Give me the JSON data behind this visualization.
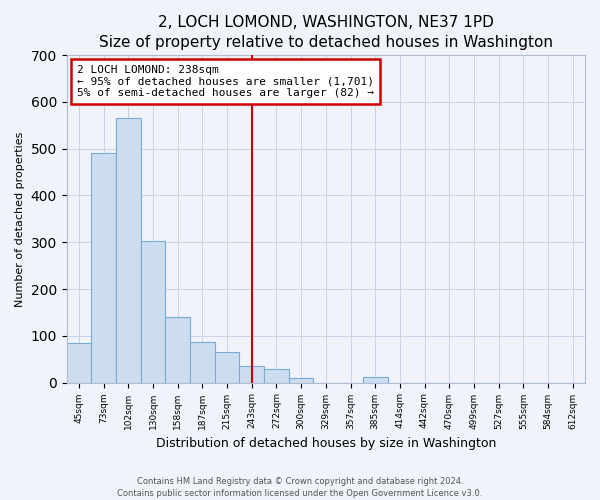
{
  "title": "2, LOCH LOMOND, WASHINGTON, NE37 1PD",
  "subtitle": "Size of property relative to detached houses in Washington",
  "xlabel": "Distribution of detached houses by size in Washington",
  "ylabel": "Number of detached properties",
  "bar_color": "#ccddf0",
  "bar_edge_color": "#7aaad0",
  "categories": [
    "45sqm",
    "73sqm",
    "102sqm",
    "130sqm",
    "158sqm",
    "187sqm",
    "215sqm",
    "243sqm",
    "272sqm",
    "300sqm",
    "329sqm",
    "357sqm",
    "385sqm",
    "414sqm",
    "442sqm",
    "470sqm",
    "499sqm",
    "527sqm",
    "555sqm",
    "584sqm",
    "612sqm"
  ],
  "values": [
    85,
    490,
    565,
    303,
    140,
    87,
    65,
    35,
    30,
    10,
    0,
    0,
    12,
    0,
    0,
    0,
    0,
    0,
    0,
    0,
    0
  ],
  "ylim": [
    0,
    700
  ],
  "yticks": [
    0,
    100,
    200,
    300,
    400,
    500,
    600,
    700
  ],
  "property_line_x": 7.0,
  "annotation_line1": "2 LOCH LOMOND: 238sqm",
  "annotation_line2": "← 95% of detached houses are smaller (1,701)",
  "annotation_line3": "5% of semi-detached houses are larger (82) →",
  "annotation_box_color": "#ffffff",
  "annotation_box_edge_color": "#cc0000",
  "vline_color": "#cc0000",
  "footer_line1": "Contains HM Land Registry data © Crown copyright and database right 2024.",
  "footer_line2": "Contains public sector information licensed under the Open Government Licence v3.0.",
  "bg_color": "#f0f4fa",
  "grid_color": "#c8d4e8",
  "title_fontsize": 11,
  "subtitle_fontsize": 9,
  "ylabel_fontsize": 8,
  "xlabel_fontsize": 9
}
